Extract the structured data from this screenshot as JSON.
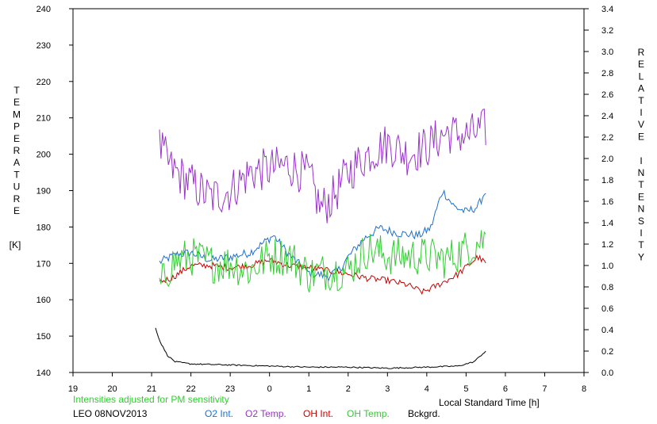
{
  "chart_data": {
    "type": "line",
    "xlabel": "Local Standard Time [h]",
    "x_ticks": [
      "19",
      "20",
      "21",
      "22",
      "23",
      "0",
      "1",
      "2",
      "3",
      "4",
      "5",
      "6",
      "7",
      "8"
    ],
    "xlim_hours_after_19": [
      0,
      13
    ],
    "ylabel_left_letters": [
      "T",
      "E",
      "M",
      "P",
      "E",
      "R",
      "A",
      "T",
      "U",
      "R",
      "E"
    ],
    "ylabel_left_unit": "[K]",
    "ylabel_right_letters": [
      "R",
      "E",
      "L",
      "A",
      "T",
      "I",
      "V",
      "E",
      " ",
      "I",
      "N",
      "T",
      "E",
      "N",
      "S",
      "I",
      "T",
      "Y"
    ],
    "ylim_left": [
      140,
      240
    ],
    "ylim_right": [
      0.0,
      3.4
    ],
    "y_ticks_left": [
      "140",
      "150",
      "160",
      "170",
      "180",
      "190",
      "200",
      "210",
      "220",
      "230",
      "240"
    ],
    "y_ticks_right": [
      "0.0",
      "0.2",
      "0.4",
      "0.6",
      "0.8",
      "1.0",
      "1.2",
      "1.4",
      "1.6",
      "1.8",
      "2.0",
      "2.2",
      "2.4",
      "2.6",
      "2.8",
      "3.0",
      "3.2",
      "3.4"
    ],
    "note": "Intensities adjusted for PM sensitivity",
    "caption": "LEO 08NOV2013",
    "series": [
      {
        "name": "O2 Int.",
        "axis": "right",
        "color": "#1f6fd0",
        "noise": 0.04,
        "keys": [
          [
            21.2,
            1.03
          ],
          [
            21.6,
            1.1
          ],
          [
            22.0,
            1.12
          ],
          [
            22.5,
            1.05
          ],
          [
            23.0,
            1.08
          ],
          [
            23.5,
            1.12
          ],
          [
            23.8,
            1.2
          ],
          [
            0.1,
            1.28
          ],
          [
            0.5,
            1.1
          ],
          [
            1.0,
            0.93
          ],
          [
            1.5,
            0.9
          ],
          [
            1.8,
            0.97
          ],
          [
            2.0,
            1.08
          ],
          [
            2.4,
            1.25
          ],
          [
            2.8,
            1.35
          ],
          [
            3.3,
            1.3
          ],
          [
            3.8,
            1.28
          ],
          [
            4.1,
            1.35
          ],
          [
            4.4,
            1.7
          ],
          [
            4.7,
            1.55
          ],
          [
            5.0,
            1.5
          ],
          [
            5.3,
            1.55
          ],
          [
            5.5,
            1.7
          ]
        ]
      },
      {
        "name": "O2 Temp.",
        "axis": "left",
        "color": "#9933cc",
        "noise": 6.0,
        "keys": [
          [
            21.2,
            202
          ],
          [
            21.5,
            196
          ],
          [
            22.0,
            192
          ],
          [
            22.5,
            188
          ],
          [
            23.0,
            190
          ],
          [
            23.5,
            195
          ],
          [
            0.0,
            196
          ],
          [
            0.5,
            197
          ],
          [
            1.0,
            194
          ],
          [
            1.3,
            185
          ],
          [
            1.6,
            188
          ],
          [
            2.0,
            195
          ],
          [
            2.5,
            200
          ],
          [
            3.0,
            203
          ],
          [
            3.5,
            200
          ],
          [
            4.0,
            202
          ],
          [
            4.5,
            206
          ],
          [
            5.0,
            205
          ],
          [
            5.5,
            207
          ]
        ]
      },
      {
        "name": "OH Int.",
        "axis": "right",
        "color": "#cc0000",
        "noise": 0.03,
        "keys": [
          [
            21.2,
            0.85
          ],
          [
            21.5,
            0.88
          ],
          [
            22.0,
            1.0
          ],
          [
            22.5,
            1.0
          ],
          [
            23.0,
            0.98
          ],
          [
            23.5,
            1.0
          ],
          [
            0.0,
            1.05
          ],
          [
            0.5,
            1.0
          ],
          [
            1.0,
            0.98
          ],
          [
            1.5,
            0.95
          ],
          [
            2.0,
            0.92
          ],
          [
            2.5,
            0.88
          ],
          [
            3.0,
            0.86
          ],
          [
            3.5,
            0.82
          ],
          [
            3.9,
            0.75
          ],
          [
            4.3,
            0.82
          ],
          [
            4.8,
            0.92
          ],
          [
            5.3,
            1.08
          ],
          [
            5.5,
            1.02
          ]
        ]
      },
      {
        "name": "OH Temp.",
        "axis": "left",
        "color": "#33cc33",
        "noise": 5.5,
        "keys": [
          [
            21.2,
            163
          ],
          [
            21.5,
            170
          ],
          [
            22.0,
            172
          ],
          [
            22.5,
            170
          ],
          [
            23.0,
            170
          ],
          [
            23.5,
            168
          ],
          [
            0.0,
            172
          ],
          [
            0.5,
            172
          ],
          [
            1.0,
            167
          ],
          [
            1.5,
            168
          ],
          [
            2.0,
            168
          ],
          [
            2.5,
            174
          ],
          [
            3.0,
            172
          ],
          [
            3.5,
            172
          ],
          [
            4.0,
            172
          ],
          [
            4.5,
            171
          ],
          [
            5.0,
            174
          ],
          [
            5.5,
            177
          ]
        ]
      },
      {
        "name": "Bckgrd.",
        "axis": "right",
        "color": "#000000",
        "noise": 0.006,
        "keys": [
          [
            21.1,
            0.42
          ],
          [
            21.2,
            0.3
          ],
          [
            21.4,
            0.16
          ],
          [
            21.6,
            0.1
          ],
          [
            22.0,
            0.08
          ],
          [
            23.0,
            0.07
          ],
          [
            0.0,
            0.06
          ],
          [
            1.0,
            0.05
          ],
          [
            2.0,
            0.05
          ],
          [
            3.0,
            0.04
          ],
          [
            4.0,
            0.05
          ],
          [
            4.8,
            0.06
          ],
          [
            5.2,
            0.1
          ],
          [
            5.5,
            0.2
          ]
        ]
      }
    ]
  }
}
